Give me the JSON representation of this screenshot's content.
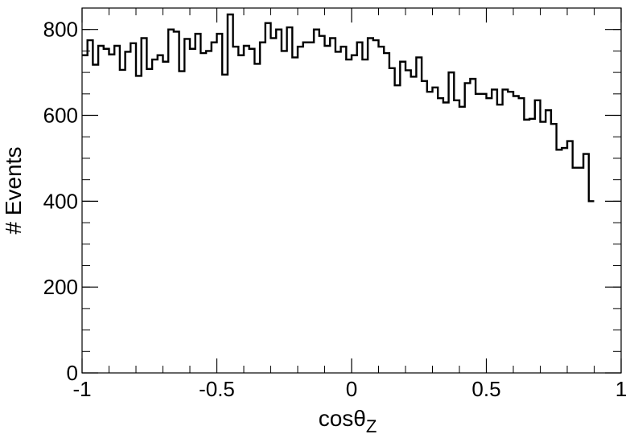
{
  "chart_data": {
    "type": "histogram",
    "title": "",
    "xlabel": "cosθ",
    "xlabel_subscript": "Z",
    "ylabel": "# Events",
    "xlim": [
      -1,
      1
    ],
    "ylim": [
      0,
      850
    ],
    "x_ticks": [
      -1,
      -0.5,
      0,
      0.5,
      1
    ],
    "x_tick_labels": [
      "-1",
      "-0.5",
      "0",
      "0.5",
      "1"
    ],
    "y_ticks": [
      0,
      200,
      400,
      600,
      800
    ],
    "y_tick_labels": [
      "0",
      "200",
      "400",
      "600",
      "800"
    ],
    "bin_width": 0.02,
    "bin_edges_start": -1,
    "counts": [
      740,
      775,
      718,
      762,
      755,
      742,
      762,
      706,
      748,
      768,
      692,
      780,
      708,
      730,
      740,
      725,
      800,
      795,
      703,
      778,
      755,
      790,
      745,
      750,
      770,
      790,
      695,
      835,
      760,
      740,
      762,
      755,
      720,
      770,
      815,
      780,
      800,
      750,
      805,
      735,
      760,
      770,
      770,
      800,
      785,
      762,
      780,
      748,
      760,
      730,
      740,
      770,
      730,
      780,
      775,
      760,
      745,
      710,
      670,
      725,
      705,
      690,
      735,
      680,
      655,
      665,
      640,
      630,
      700,
      635,
      620,
      675,
      685,
      650,
      650,
      640,
      660,
      625,
      660,
      655,
      645,
      640,
      590,
      592,
      635,
      585,
      612,
      580,
      520,
      524,
      540,
      478,
      478,
      510,
      400
    ],
    "line_color": "#000000",
    "grid": false,
    "legend": "none"
  }
}
